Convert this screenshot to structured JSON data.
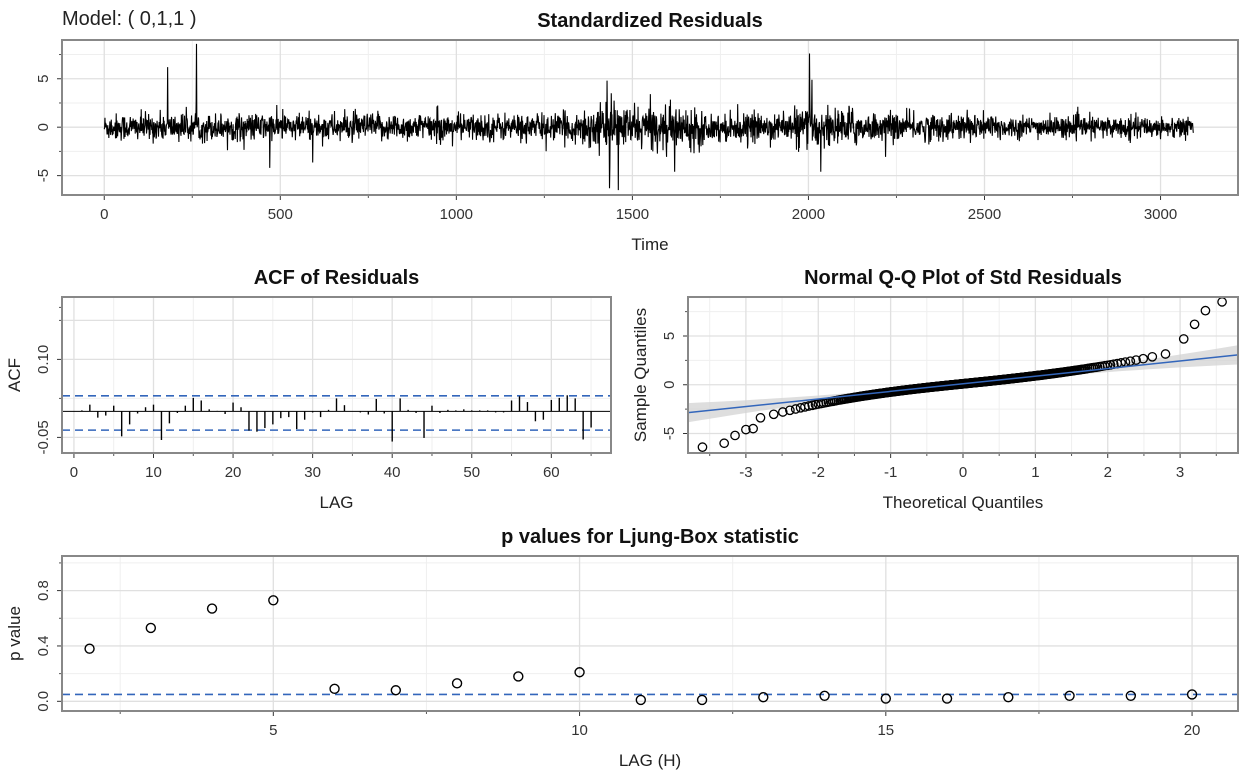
{
  "model_label": "Model: ( 0,1,1 )",
  "colors": {
    "series": "#000000",
    "ci": "#3366bb",
    "fit": "#3366bb",
    "band": "#d3d3d3",
    "grid": "#e0e0e0",
    "frame": "#888888"
  },
  "chart_data": [
    {
      "id": "residuals",
      "type": "line",
      "title": "Standardized Residuals",
      "xlabel": "Time",
      "ylabel": "",
      "xlim": [
        -120,
        3220
      ],
      "ylim": [
        -7,
        9
      ],
      "xticks": [
        0,
        500,
        1000,
        1500,
        2000,
        2500,
        3000
      ],
      "xtick_labels": [
        "0",
        "500",
        "1000",
        "1500",
        "2000",
        "2500",
        "3000"
      ],
      "yticks": [
        -5,
        0,
        5
      ],
      "ytick_labels": [
        "-5",
        "0",
        "5"
      ],
      "n": 3094,
      "spikes": [
        {
          "x": 180,
          "y": 6.2
        },
        {
          "x": 262,
          "y": 8.6
        },
        {
          "x": 470,
          "y": -4.2
        },
        {
          "x": 1428,
          "y": 4.8
        },
        {
          "x": 1435,
          "y": -6.3
        },
        {
          "x": 1460,
          "y": -6.5
        },
        {
          "x": 1440,
          "y": 3.5
        },
        {
          "x": 1620,
          "y": -4.6
        },
        {
          "x": 2003,
          "y": 7.6
        },
        {
          "x": 2035,
          "y": -4.6
        },
        {
          "x": 2010,
          "y": 4.9
        }
      ]
    },
    {
      "id": "acf",
      "type": "bar",
      "title": "ACF of Residuals",
      "xlabel": "LAG",
      "ylabel": "ACF",
      "xlim": [
        -1.5,
        67.5
      ],
      "ylim": [
        -0.08,
        0.22
      ],
      "xticks": [
        0,
        10,
        20,
        30,
        40,
        50,
        60
      ],
      "xtick_labels": [
        "0",
        "10",
        "20",
        "30",
        "40",
        "50",
        "60"
      ],
      "yticks": [
        -0.05,
        0.1
      ],
      "ytick_labels": [
        "-0.05",
        "0.10"
      ],
      "ci": [
        0.03,
        -0.036
      ],
      "lags": [
        1,
        2,
        3,
        4,
        5,
        6,
        7,
        8,
        9,
        10,
        11,
        12,
        13,
        14,
        15,
        16,
        17,
        18,
        19,
        20,
        21,
        22,
        23,
        24,
        25,
        26,
        27,
        28,
        29,
        30,
        31,
        32,
        33,
        34,
        35,
        36,
        37,
        38,
        39,
        40,
        41,
        42,
        43,
        44,
        45,
        46,
        47,
        48,
        49,
        50,
        51,
        52,
        53,
        54,
        55,
        56,
        57,
        58,
        59,
        60,
        61,
        62,
        63,
        64,
        65
      ],
      "values": [
        0.002,
        0.013,
        -0.012,
        -0.008,
        0.011,
        -0.048,
        -0.025,
        -0.004,
        0.008,
        0.013,
        -0.055,
        -0.023,
        -0.003,
        0.011,
        0.026,
        0.021,
        0.004,
        0.001,
        -0.005,
        0.017,
        0.008,
        -0.037,
        -0.039,
        -0.032,
        -0.025,
        -0.013,
        -0.011,
        -0.034,
        -0.016,
        -0.002,
        -0.011,
        0.003,
        0.025,
        0.012,
        0.0,
        -0.002,
        -0.006,
        0.024,
        -0.004,
        -0.058,
        0.025,
        0.003,
        -0.003,
        -0.051,
        0.011,
        -0.003,
        0.003,
        0.002,
        0.004,
        0.002,
        0.002,
        0.002,
        -0.002,
        -0.002,
        0.021,
        0.029,
        0.018,
        -0.019,
        -0.016,
        0.022,
        0.026,
        0.031,
        0.025,
        -0.054,
        -0.031
      ]
    },
    {
      "id": "qq",
      "type": "scatter",
      "title": "Normal Q-Q Plot of Std Residuals",
      "xlabel": "Theoretical Quantiles",
      "ylabel": "Sample Quantiles",
      "xlim": [
        -3.8,
        3.8
      ],
      "ylim": [
        -7,
        9
      ],
      "xticks": [
        -3,
        -2,
        -1,
        0,
        1,
        2,
        3
      ],
      "xtick_labels": [
        "-3",
        "-2",
        "-1",
        "0",
        "1",
        "2",
        "3"
      ],
      "yticks": [
        -5,
        0,
        5
      ],
      "ytick_labels": [
        "-5",
        "0",
        "5"
      ],
      "fit": {
        "intercept": 0.1,
        "slope": 0.78
      },
      "tail_points": [
        {
          "x": -3.6,
          "y": -6.4
        },
        {
          "x": -3.3,
          "y": -6.0
        },
        {
          "x": -3.15,
          "y": -5.2
        },
        {
          "x": -3.0,
          "y": -4.6
        },
        {
          "x": -2.9,
          "y": -4.5
        },
        {
          "x": 3.58,
          "y": 8.5
        },
        {
          "x": 3.35,
          "y": 7.6
        },
        {
          "x": 3.2,
          "y": 6.2
        },
        {
          "x": 3.05,
          "y": 4.7
        }
      ]
    },
    {
      "id": "ljung_box",
      "type": "scatter",
      "title": "p values for Ljung-Box statistic",
      "xlabel": "LAG (H)",
      "ylabel": "p value",
      "xlim": [
        1.55,
        20.75
      ],
      "ylim": [
        -0.07,
        1.05
      ],
      "xticks": [
        5,
        10,
        15,
        20
      ],
      "xtick_labels": [
        "5",
        "10",
        "15",
        "20"
      ],
      "yticks": [
        0.0,
        0.4,
        0.8
      ],
      "ytick_labels": [
        "0.0",
        "0.4",
        "0.8"
      ],
      "ci": 0.05,
      "x": [
        2,
        3,
        4,
        5,
        6,
        7,
        8,
        9,
        10,
        11,
        12,
        13,
        14,
        15,
        16,
        17,
        18,
        19,
        20
      ],
      "y": [
        0.38,
        0.53,
        0.67,
        0.73,
        0.09,
        0.08,
        0.13,
        0.18,
        0.21,
        0.01,
        0.01,
        0.03,
        0.04,
        0.02,
        0.02,
        0.03,
        0.04,
        0.04,
        0.05
      ]
    }
  ]
}
